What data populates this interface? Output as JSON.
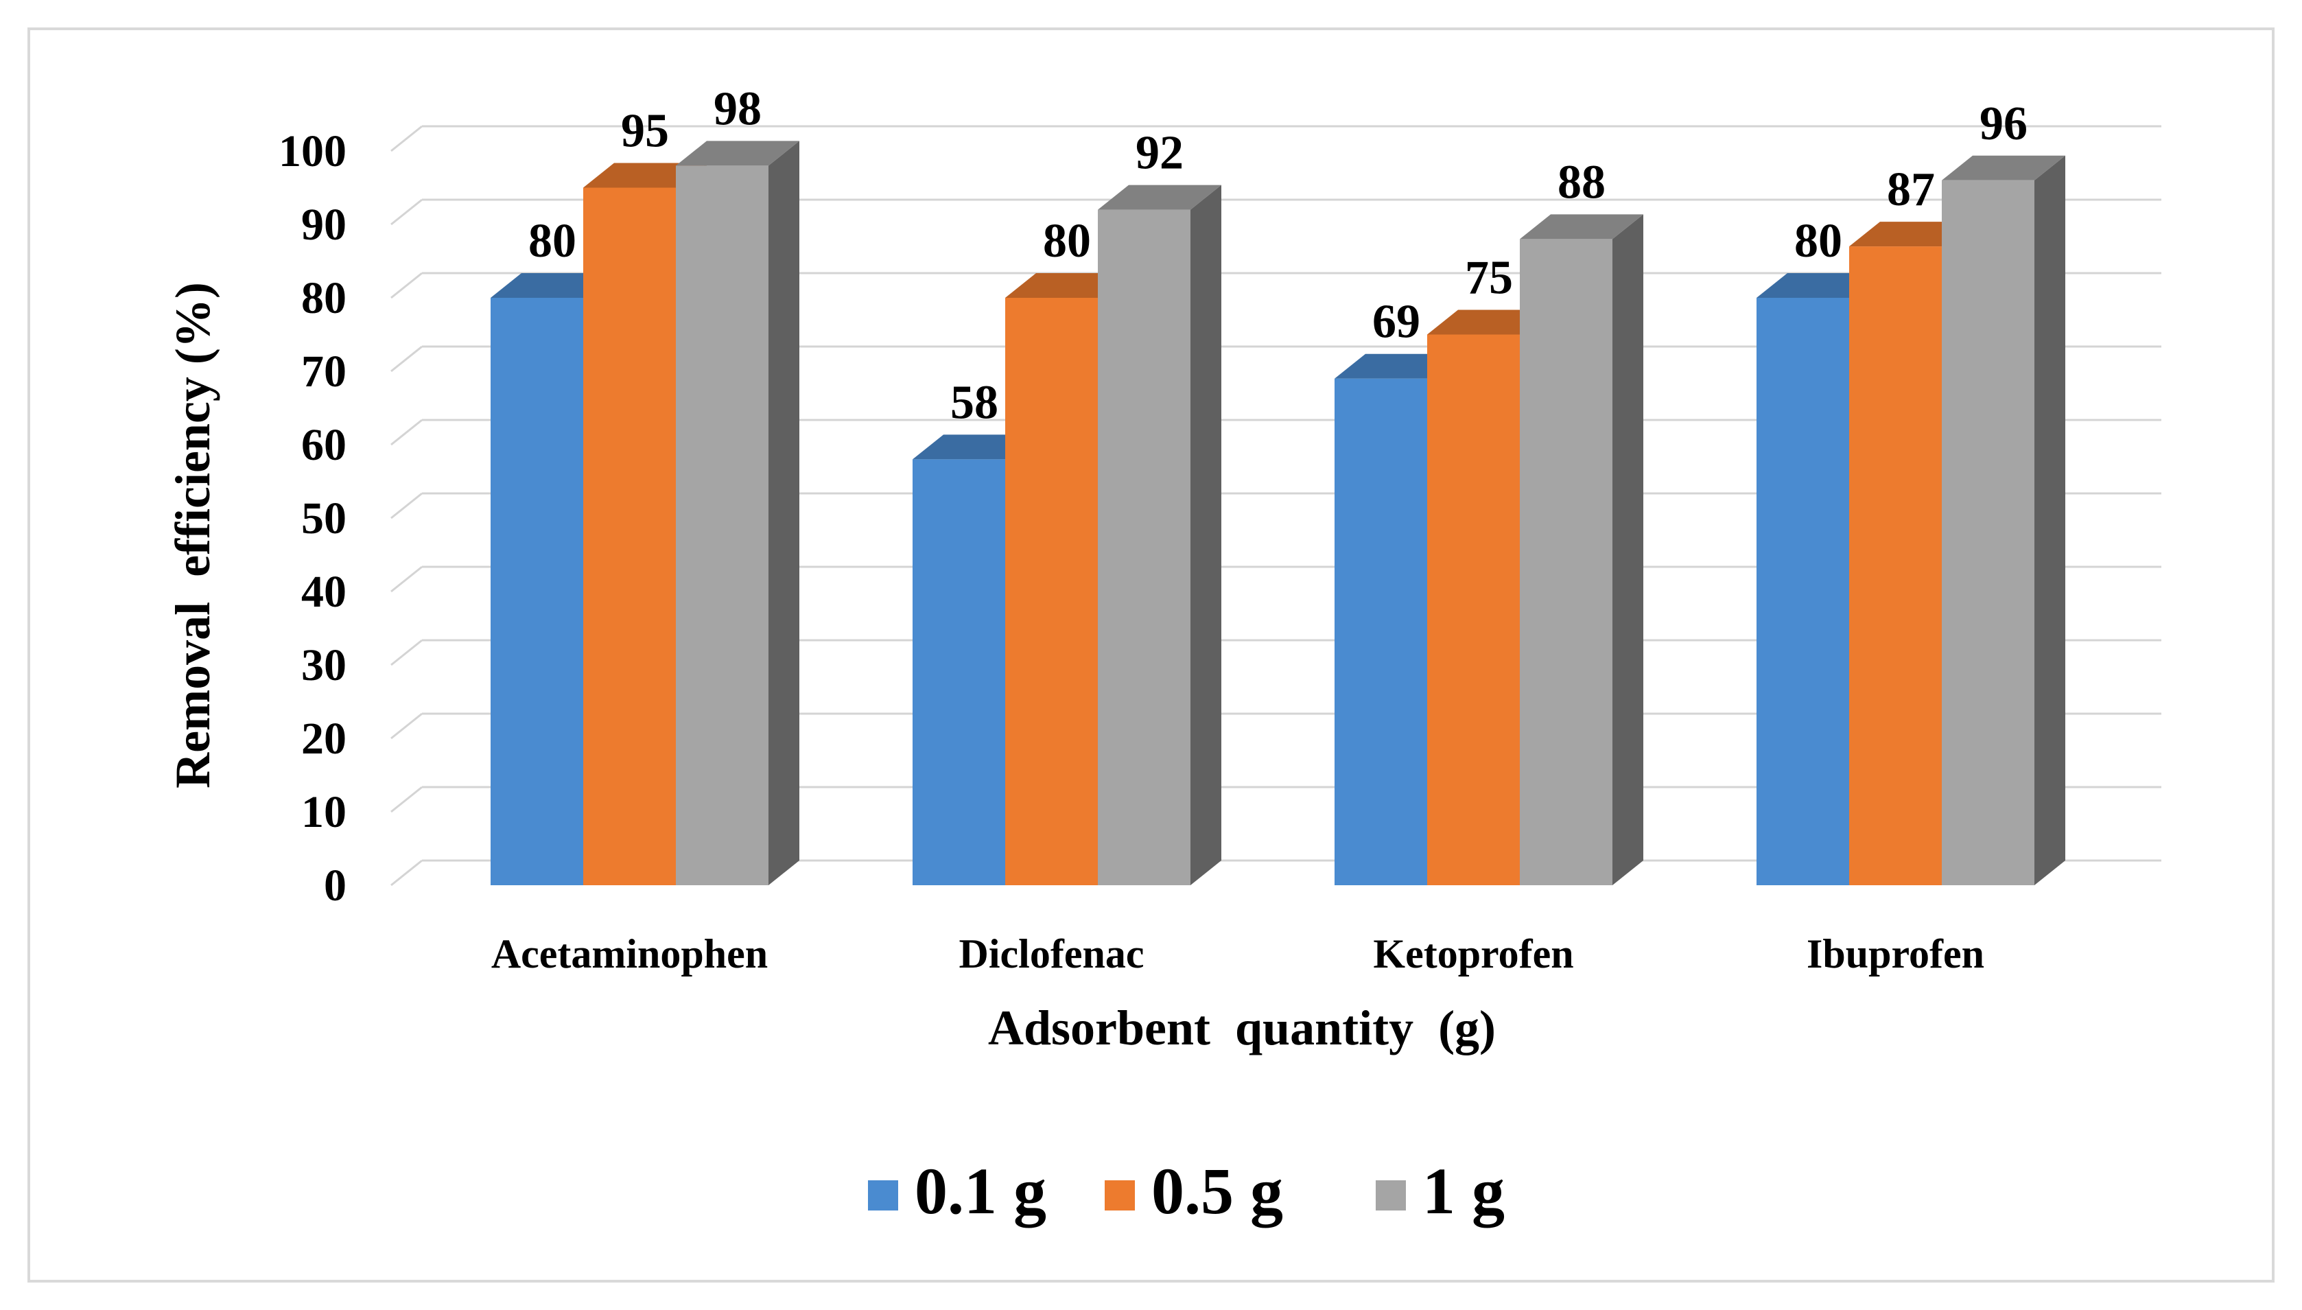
{
  "chart_data": {
    "type": "bar",
    "style": "3d-clustered-column",
    "categories": [
      "Acetaminophen",
      "Diclofenac",
      "Ketoprofen",
      "Ibuprofen"
    ],
    "series": [
      {
        "name": "0.1 g",
        "color": "#4a8bd0",
        "values": [
          80,
          58,
          69,
          80
        ]
      },
      {
        "name": "0.5 g",
        "color": "#ed7b2e",
        "values": [
          95,
          80,
          75,
          87
        ]
      },
      {
        "name": "1 g",
        "color": "#a5a5a5",
        "values": [
          98,
          92,
          88,
          96
        ]
      }
    ],
    "xlabel": "Adsorbent  quantity  (g)",
    "ylabel": "Removal  efficiency (%)",
    "ylim": [
      0,
      100
    ],
    "yticks": [
      0,
      10,
      20,
      30,
      40,
      50,
      60,
      70,
      80,
      90,
      100
    ],
    "grid": true,
    "legend": "bottom"
  }
}
